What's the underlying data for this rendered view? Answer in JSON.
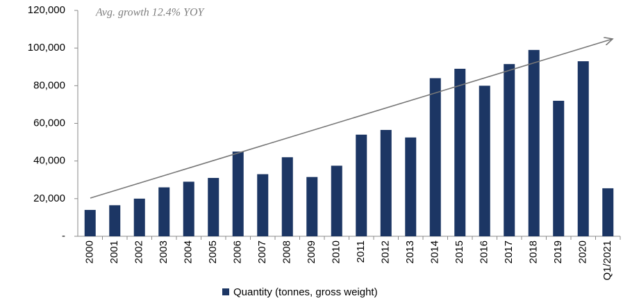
{
  "chart_data": {
    "type": "bar",
    "annotation": "Avg. growth 12.4% YOY",
    "categories": [
      "2000",
      "2001",
      "2002",
      "2003",
      "2004",
      "2005",
      "2006",
      "2007",
      "2008",
      "2009",
      "2010",
      "2011",
      "2012",
      "2013",
      "2014",
      "2015",
      "2016",
      "2017",
      "2018",
      "2019",
      "2020",
      "Q1/2021"
    ],
    "series": [
      {
        "name": "Quantity (tonnes, gross weight)",
        "color": "#1c3664",
        "values": [
          14000,
          16500,
          20000,
          26000,
          29000,
          31000,
          45000,
          33000,
          42000,
          31500,
          37500,
          54000,
          56500,
          52500,
          84000,
          89000,
          80000,
          91500,
          99000,
          72000,
          93000,
          25500
        ]
      }
    ],
    "ylim": [
      0,
      120000
    ],
    "yticks": [
      {
        "value": 0,
        "label": "-"
      },
      {
        "value": 20000,
        "label": "20,000"
      },
      {
        "value": 40000,
        "label": "40,000"
      },
      {
        "value": 60000,
        "label": "60,000"
      },
      {
        "value": 80000,
        "label": "80,000"
      },
      {
        "value": 100000,
        "label": "100,000"
      },
      {
        "value": 120000,
        "label": "120,000"
      }
    ],
    "legend": "bottom"
  }
}
